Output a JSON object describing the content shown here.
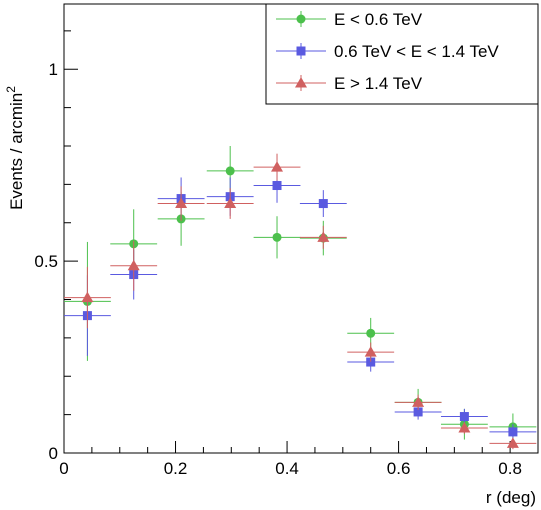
{
  "chart_data": {
    "type": "scatter",
    "title": "",
    "xlabel": "r (deg)",
    "ylabel_main": "Events / arcmin",
    "ylabel_sup": "2",
    "xlim": [
      0,
      0.85
    ],
    "ylim": [
      0,
      1.17
    ],
    "x_ticks": [
      {
        "value": 0,
        "label": "0"
      },
      {
        "value": 0.2,
        "label": "0.2"
      },
      {
        "value": 0.4,
        "label": "0.4"
      },
      {
        "value": 0.6,
        "label": "0.6"
      },
      {
        "value": 0.8,
        "label": "0.8"
      }
    ],
    "y_ticks": [
      {
        "value": 0,
        "label": "0"
      },
      {
        "value": 0.5,
        "label": "0.5"
      },
      {
        "value": 1,
        "label": "1"
      }
    ],
    "grid": false,
    "legend_position": "top-right",
    "series": [
      {
        "name": "E < 0.6 TeV",
        "color": "#4cc04c",
        "marker": "circle",
        "x": [
          0.042,
          0.125,
          0.21,
          0.298,
          0.382,
          0.465,
          0.55,
          0.635,
          0.718,
          0.805
        ],
        "y": [
          0.395,
          0.545,
          0.61,
          0.735,
          0.562,
          0.56,
          0.312,
          0.132,
          0.075,
          0.068
        ],
        "xerr": [
          0.042,
          0.042,
          0.042,
          0.042,
          0.042,
          0.042,
          0.042,
          0.042,
          0.042,
          0.042
        ],
        "yerr": [
          0.155,
          0.09,
          0.07,
          0.065,
          0.055,
          0.045,
          0.04,
          0.035,
          0.04,
          0.035
        ]
      },
      {
        "name": "0.6 TeV < E < 1.4 TeV",
        "color": "#5a5ae0",
        "marker": "square",
        "x": [
          0.042,
          0.125,
          0.21,
          0.298,
          0.382,
          0.465,
          0.55,
          0.635,
          0.718,
          0.805
        ],
        "y": [
          0.358,
          0.465,
          0.663,
          0.668,
          0.697,
          0.65,
          0.237,
          0.107,
          0.095,
          0.055
        ],
        "xerr": [
          0.042,
          0.042,
          0.042,
          0.042,
          0.042,
          0.042,
          0.042,
          0.042,
          0.042,
          0.042
        ],
        "yerr": [
          0.105,
          0.065,
          0.055,
          0.05,
          0.045,
          0.035,
          0.025,
          0.02,
          0.02,
          0.02
        ]
      },
      {
        "name": "E > 1.4 TeV",
        "color": "#d06060",
        "marker": "triangle",
        "x": [
          0.042,
          0.125,
          0.21,
          0.298,
          0.382,
          0.465,
          0.55,
          0.635,
          0.718,
          0.805
        ],
        "y": [
          0.405,
          0.488,
          0.65,
          0.65,
          0.745,
          0.562,
          0.263,
          0.132,
          0.065,
          0.025
        ],
        "xerr": [
          0.042,
          0.042,
          0.042,
          0.042,
          0.042,
          0.042,
          0.042,
          0.042,
          0.042,
          0.042
        ],
        "yerr": [
          0.08,
          0.065,
          0.045,
          0.04,
          0.035,
          0.03,
          0.025,
          0.02,
          0.015,
          0.015
        ]
      }
    ]
  }
}
